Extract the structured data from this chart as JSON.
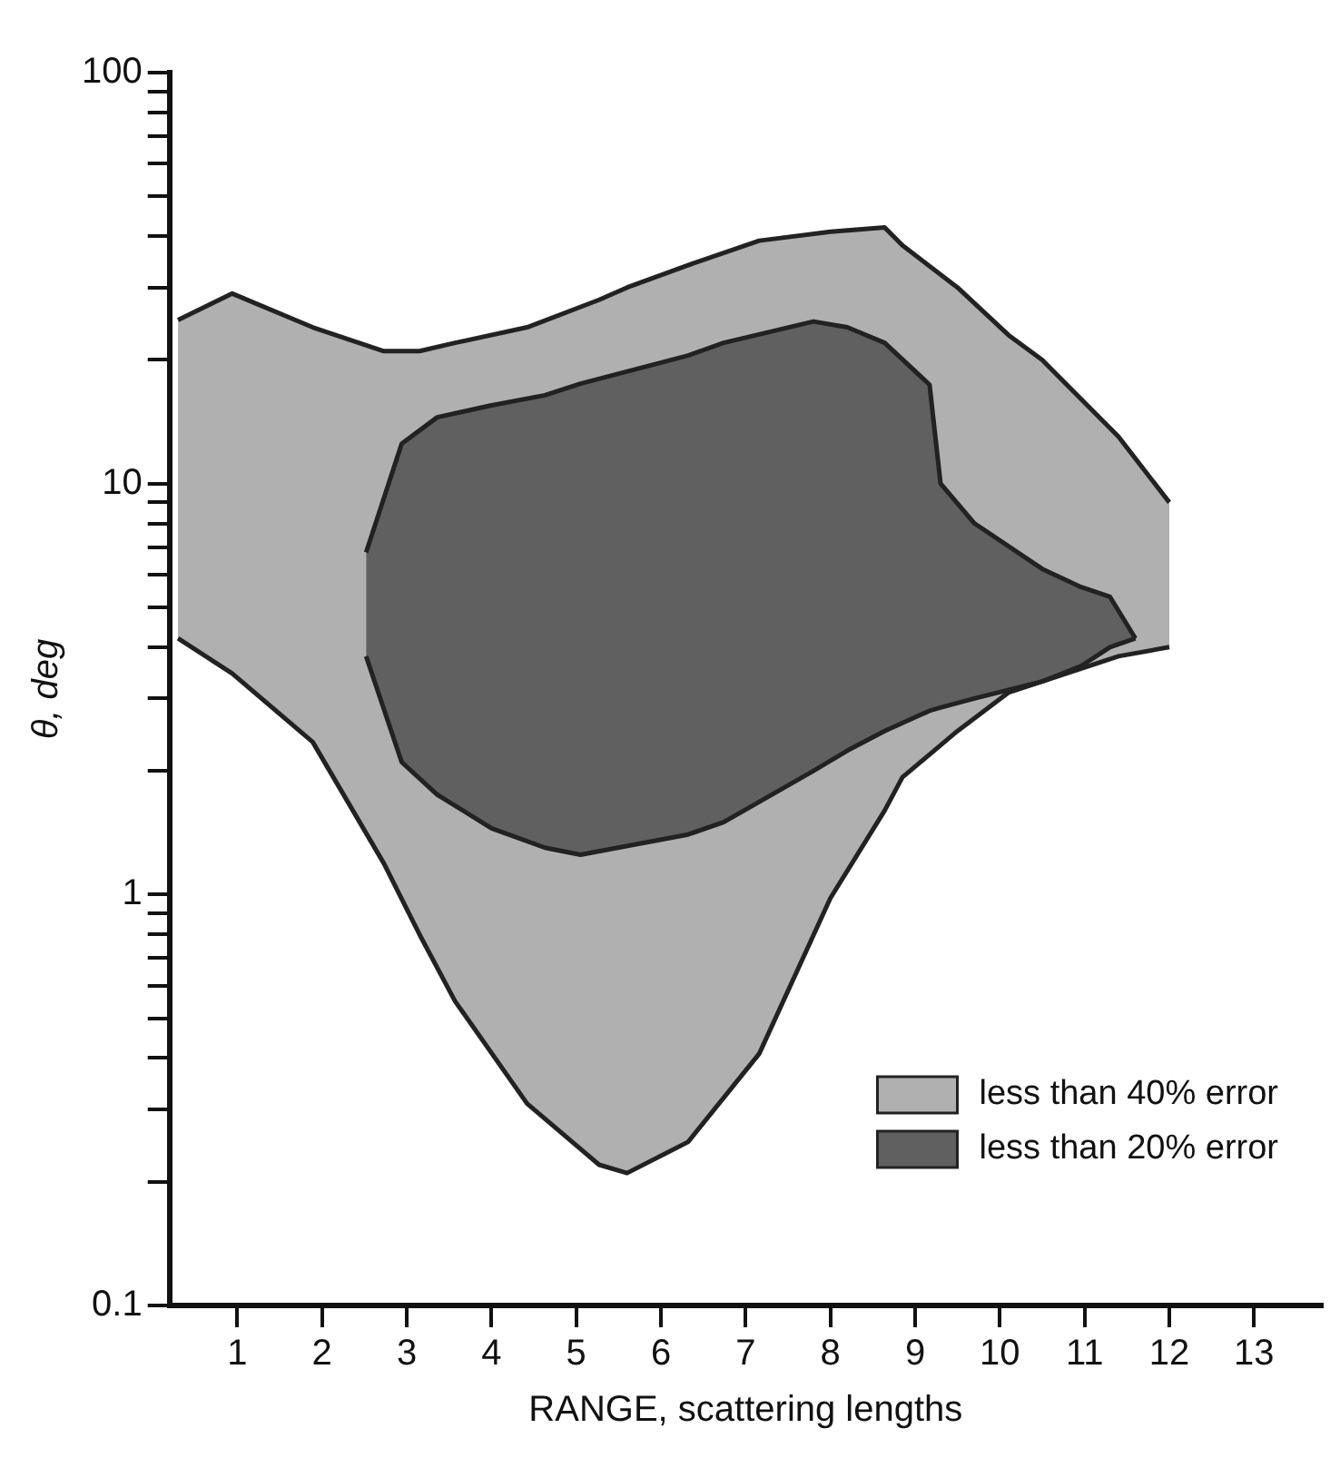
{
  "chart_data": {
    "type": "area",
    "xlabel": "RANGE, scattering lengths",
    "ylabel": "θ, deg",
    "log": "y",
    "grid": false,
    "legend": "bottom right",
    "marker": "none",
    "xlim": [
      0.2,
      13.8
    ],
    "xticks": [
      1,
      2,
      3,
      4,
      5,
      6,
      7,
      8,
      9,
      10,
      11,
      12,
      13
    ],
    "ylim": [
      0.1,
      100
    ],
    "yticks": [
      0.1,
      {
        "value": 0.2,
        "label": null
      },
      {
        "value": 0.3,
        "label": null
      },
      {
        "value": 0.4,
        "label": null
      },
      {
        "value": 0.5,
        "label": null
      },
      {
        "value": 0.6,
        "label": null
      },
      {
        "value": 0.7,
        "label": null
      },
      {
        "value": 0.8,
        "label": null
      },
      {
        "value": 0.9,
        "label": null
      },
      1,
      {
        "value": 2,
        "label": null
      },
      {
        "value": 3,
        "label": null
      },
      {
        "value": 4,
        "label": null
      },
      {
        "value": 5,
        "label": null
      },
      {
        "value": 6,
        "label": null
      },
      {
        "value": 7,
        "label": null
      },
      {
        "value": 8,
        "label": null
      },
      {
        "value": 9,
        "label": null
      },
      10,
      {
        "value": 20,
        "label": null
      },
      {
        "value": 30,
        "label": null
      },
      {
        "value": 40,
        "label": null
      },
      {
        "value": 50,
        "label": null
      },
      {
        "value": 60,
        "label": null
      },
      {
        "value": 70,
        "label": null
      },
      {
        "value": 80,
        "label": null
      },
      {
        "value": 90,
        "label": null
      },
      100
    ],
    "series": [
      {
        "type": "line",
        "color": "#222222",
        "x": [
          0.3,
          0.94,
          1.89,
          2.73,
          3.15,
          3.57,
          4.42,
          5.27,
          5.6,
          6.32,
          7.16,
          8.0,
          8.64,
          8.85,
          9.5,
          10.1,
          10.5,
          11.4,
          12.0
        ],
        "values": [
          4.2,
          3.45,
          2.35,
          1.19,
          0.8,
          0.55,
          0.31,
          0.22,
          0.21,
          0.25,
          0.41,
          0.98,
          1.6,
          1.93,
          2.5,
          3.1,
          3.3,
          3.8,
          4.0
        ]
      },
      {
        "name": "less than 40% error",
        "color": "#b0b0b0",
        "x": [
          0.3,
          0.94,
          1.89,
          2.73,
          3.15,
          3.57,
          4.42,
          5.27,
          5.6,
          6.32,
          7.16,
          8.0,
          8.64,
          8.85,
          9.5,
          10.1,
          10.5,
          11.4,
          12.0
        ],
        "values": [
          25,
          29,
          24,
          21,
          21,
          22,
          24,
          28,
          30,
          34,
          39,
          41,
          42,
          38,
          30,
          23,
          20,
          13,
          9
        ]
      },
      {
        "type": "line",
        "color": "#222222",
        "x": [
          2.52,
          2.94,
          3.36,
          4.0,
          4.63,
          5.05,
          6.32,
          6.74,
          7.8,
          8.2,
          8.64,
          9.17,
          9.3,
          9.7,
          10.5,
          10.96,
          11.3,
          11.6
        ],
        "values": [
          3.8,
          2.1,
          1.75,
          1.45,
          1.3,
          1.25,
          1.4,
          1.5,
          2.0,
          2.24,
          2.5,
          2.8,
          2.85,
          3.0,
          3.3,
          3.6,
          4.0,
          4.2
        ]
      },
      {
        "name": "less than 20% error",
        "color": "#606060",
        "x": [
          2.52,
          2.94,
          3.36,
          4.0,
          4.63,
          5.05,
          6.32,
          6.74,
          7.8,
          8.2,
          8.64,
          9.17,
          9.3,
          9.7,
          10.5,
          10.96,
          11.3,
          11.6
        ],
        "values": [
          6.8,
          12.5,
          14.5,
          15.5,
          16.4,
          17.5,
          20.5,
          22,
          24.8,
          24,
          22,
          17.4,
          10,
          8,
          6.2,
          5.6,
          5.3,
          4.2
        ]
      }
    ]
  }
}
